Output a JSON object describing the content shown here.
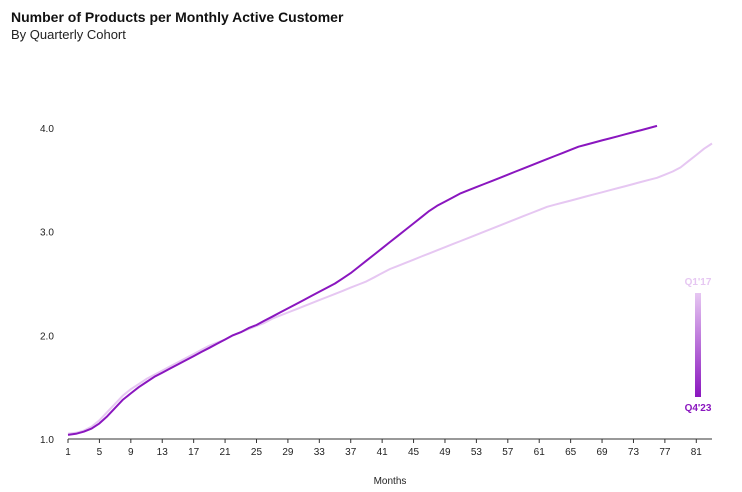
{
  "chart_data": {
    "type": "line",
    "title": "Number of Products per Monthly Active Customer",
    "subtitle": "By Quarterly Cohort",
    "xlabel": "Months",
    "ylabel": "",
    "xlim": [
      1,
      83
    ],
    "ylim": [
      1.0,
      4.0
    ],
    "x_ticks": [
      1,
      5,
      9,
      13,
      17,
      21,
      25,
      29,
      33,
      37,
      41,
      45,
      49,
      53,
      57,
      61,
      65,
      69,
      73,
      77,
      81
    ],
    "y_ticks": [
      "1.0",
      "2.0",
      "3.0",
      "4.0"
    ],
    "grid": false,
    "legend": {
      "type": "color-gradient",
      "placement": "right",
      "top_label": "Q1'17",
      "bottom_label": "Q4'23",
      "top_color": "#e6c7f2",
      "bottom_color": "#8a16bf"
    },
    "series": [
      {
        "cohort_index": 0,
        "values": [
          1.05,
          1.06,
          1.08,
          1.12,
          1.18,
          1.26,
          1.34,
          1.42,
          1.48,
          1.53,
          1.58,
          1.62,
          1.66,
          1.7,
          1.74,
          1.78,
          1.82,
          1.86,
          1.9,
          1.93,
          1.96,
          2.0,
          2.03,
          2.06,
          2.09,
          2.12,
          2.16,
          2.19,
          2.22,
          2.25,
          2.28,
          2.31,
          2.34,
          2.37,
          2.4,
          2.43,
          2.46,
          2.49,
          2.52,
          2.56,
          2.6,
          2.64,
          2.67,
          2.7,
          2.73,
          2.76,
          2.79,
          2.82,
          2.85,
          2.88,
          2.91,
          2.94,
          2.97,
          3.0,
          3.03,
          3.06,
          3.09,
          3.12,
          3.15,
          3.18,
          3.21,
          3.24,
          3.26,
          3.28,
          3.3,
          3.32,
          3.34,
          3.36,
          3.38,
          3.4,
          3.42,
          3.44,
          3.46,
          3.48,
          3.5,
          3.52,
          3.55,
          3.58,
          3.62,
          3.68,
          3.74,
          3.8,
          3.85
        ]
      },
      {
        "cohort_index": 1,
        "values": [
          1.04,
          1.05,
          1.07,
          1.1,
          1.15,
          1.22,
          1.3,
          1.38,
          1.44,
          1.5,
          1.55,
          1.6,
          1.64,
          1.68,
          1.72,
          1.76,
          1.8,
          1.84,
          1.88,
          1.92,
          1.96,
          2.0,
          2.03,
          2.07,
          2.1,
          2.14,
          2.18,
          2.22,
          2.26,
          2.3,
          2.34,
          2.38,
          2.42,
          2.46,
          2.5,
          2.55,
          2.6,
          2.66,
          2.72,
          2.78,
          2.84,
          2.9,
          2.96,
          3.02,
          3.08,
          3.14,
          3.2,
          3.25,
          3.29,
          3.33,
          3.37,
          3.4,
          3.43,
          3.46,
          3.49,
          3.52,
          3.55,
          3.58,
          3.61,
          3.64,
          3.67,
          3.7,
          3.73,
          3.76,
          3.79,
          3.82,
          3.84,
          3.86,
          3.88,
          3.9,
          3.92,
          3.94,
          3.96,
          3.98,
          4.0,
          4.02
        ]
      }
    ]
  }
}
